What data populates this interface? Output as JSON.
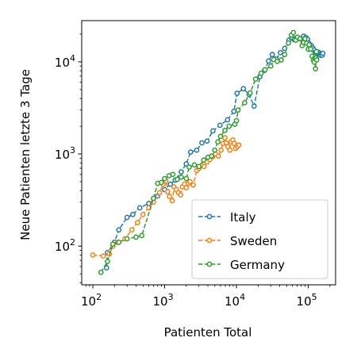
{
  "chart_data": {
    "type": "scatter",
    "title": "",
    "xlabel": "Patienten Total",
    "ylabel": "Neue Patienten letzte 3 Tage",
    "x_scale": "log",
    "y_scale": "log",
    "xlim": [
      70,
      240000
    ],
    "ylim": [
      38,
      28000
    ],
    "x_ticks": [
      {
        "value": 100,
        "base": "10",
        "exp": "2"
      },
      {
        "value": 1000,
        "base": "10",
        "exp": "3"
      },
      {
        "value": 10000,
        "base": "10",
        "exp": "4"
      },
      {
        "value": 100000,
        "base": "10",
        "exp": "5"
      }
    ],
    "y_ticks": [
      {
        "value": 100,
        "base": "10",
        "exp": "2"
      },
      {
        "value": 1000,
        "base": "10",
        "exp": "3"
      },
      {
        "value": 10000,
        "base": "10",
        "exp": "4"
      }
    ],
    "grid": false,
    "legend_position": "lower-right",
    "series": [
      {
        "name": "Italy",
        "color": "#1f77b4",
        "points": [
          [
            155,
            58
          ],
          [
            160,
            85
          ],
          [
            200,
            110
          ],
          [
            230,
            150
          ],
          [
            300,
            205
          ],
          [
            360,
            220
          ],
          [
            450,
            260
          ],
          [
            600,
            290
          ],
          [
            800,
            350
          ],
          [
            1000,
            410
          ],
          [
            1200,
            470
          ],
          [
            1400,
            520
          ],
          [
            1700,
            640
          ],
          [
            2000,
            780
          ],
          [
            2300,
            1050
          ],
          [
            2800,
            1100
          ],
          [
            3300,
            1320
          ],
          [
            3900,
            1380
          ],
          [
            4700,
            1780
          ],
          [
            5900,
            2050
          ],
          [
            7500,
            2350
          ],
          [
            9200,
            2900
          ],
          [
            10200,
            4550
          ],
          [
            12500,
            5100
          ],
          [
            15000,
            4400
          ],
          [
            17600,
            3300
          ],
          [
            21200,
            6900
          ],
          [
            24700,
            8100
          ],
          [
            28000,
            10200
          ],
          [
            31500,
            12000
          ],
          [
            35700,
            10700
          ],
          [
            41000,
            12600
          ],
          [
            47000,
            14000
          ],
          [
            53600,
            17200
          ],
          [
            59100,
            18300
          ],
          [
            64000,
            17400
          ],
          [
            69000,
            18300
          ],
          [
            74000,
            17800
          ],
          [
            80500,
            18000
          ],
          [
            86500,
            19000
          ],
          [
            92400,
            18400
          ],
          [
            97700,
            17600
          ],
          [
            101700,
            16000
          ],
          [
            105800,
            15300
          ],
          [
            110600,
            15000
          ],
          [
            115200,
            14200
          ],
          [
            119800,
            13500
          ],
          [
            124600,
            12700
          ],
          [
            128900,
            12900
          ],
          [
            132500,
            12500
          ],
          [
            135600,
            12400
          ],
          [
            139400,
            12700
          ],
          [
            143600,
            12200
          ],
          [
            147500,
            11800
          ],
          [
            152300,
            12200
          ],
          [
            156300,
            11800
          ],
          [
            159500,
            12400
          ]
        ]
      },
      {
        "name": "Sweden",
        "color": "#ff7f0e",
        "points": [
          [
            100,
            80
          ],
          [
            140,
            78
          ],
          [
            170,
            82
          ],
          [
            190,
            100
          ],
          [
            220,
            110
          ],
          [
            280,
            120
          ],
          [
            350,
            150
          ],
          [
            420,
            180
          ],
          [
            500,
            220
          ],
          [
            600,
            260
          ],
          [
            700,
            300
          ],
          [
            850,
            380
          ],
          [
            950,
            470
          ],
          [
            1040,
            510
          ],
          [
            1100,
            390
          ],
          [
            1170,
            345
          ],
          [
            1280,
            310
          ],
          [
            1350,
            440
          ],
          [
            1460,
            410
          ],
          [
            1550,
            380
          ],
          [
            1670,
            360
          ],
          [
            1760,
            440
          ],
          [
            1890,
            470
          ],
          [
            2000,
            430
          ],
          [
            2140,
            480
          ],
          [
            2260,
            500
          ],
          [
            2500,
            460
          ],
          [
            2800,
            660
          ],
          [
            3000,
            700
          ],
          [
            3300,
            750
          ],
          [
            3550,
            730
          ],
          [
            3900,
            820
          ],
          [
            4250,
            870
          ],
          [
            4650,
            930
          ],
          [
            5100,
            1000
          ],
          [
            5600,
            950
          ],
          [
            6100,
            1100
          ],
          [
            6500,
            1300
          ],
          [
            6900,
            1500
          ],
          [
            7200,
            1320
          ],
          [
            7600,
            1200
          ],
          [
            8100,
            1100
          ],
          [
            8400,
            1350
          ],
          [
            8900,
            1420
          ],
          [
            9300,
            1300
          ],
          [
            9700,
            1150
          ],
          [
            10300,
            1200
          ],
          [
            10800,
            1250
          ]
        ]
      },
      {
        "name": "Germany",
        "color": "#2ca02c",
        "points": [
          [
            130,
            52
          ],
          [
            160,
            68
          ],
          [
            190,
            105
          ],
          [
            230,
            110
          ],
          [
            300,
            120
          ],
          [
            400,
            125
          ],
          [
            480,
            130
          ],
          [
            700,
            330
          ],
          [
            800,
            480
          ],
          [
            900,
            490
          ],
          [
            1000,
            540
          ],
          [
            1150,
            580
          ],
          [
            1300,
            600
          ],
          [
            1500,
            530
          ],
          [
            1700,
            560
          ],
          [
            2000,
            540
          ],
          [
            2200,
            720
          ],
          [
            2600,
            760
          ],
          [
            3000,
            730
          ],
          [
            3500,
            860
          ],
          [
            4000,
            920
          ],
          [
            4500,
            950
          ],
          [
            5000,
            1100
          ],
          [
            5500,
            1350
          ],
          [
            6000,
            1550
          ],
          [
            6900,
            1800
          ],
          [
            7900,
            2000
          ],
          [
            9500,
            2100
          ],
          [
            10000,
            2300
          ],
          [
            10500,
            3000
          ],
          [
            13000,
            3600
          ],
          [
            15500,
            4600
          ],
          [
            18500,
            6500
          ],
          [
            22000,
            7500
          ],
          [
            25000,
            8200
          ],
          [
            30000,
            9000
          ],
          [
            33000,
            10600
          ],
          [
            37000,
            10100
          ],
          [
            42000,
            10500
          ],
          [
            47000,
            12000
          ],
          [
            53000,
            16000
          ],
          [
            58000,
            19500
          ],
          [
            62000,
            20800
          ],
          [
            67000,
            17200
          ],
          [
            71000,
            18500
          ],
          [
            77000,
            17800
          ],
          [
            82000,
            15000
          ],
          [
            86000,
            16200
          ],
          [
            90000,
            17800
          ],
          [
            95000,
            15900
          ],
          [
            100000,
            13700
          ],
          [
            103000,
            15300
          ],
          [
            108000,
            13800
          ],
          [
            113000,
            11500
          ],
          [
            118000,
            10400
          ],
          [
            121000,
            9900
          ],
          [
            123000,
            11000
          ],
          [
            126000,
            8400
          ],
          [
            128000,
            11000
          ],
          [
            130000,
            12900
          ],
          [
            131000,
            10500
          ]
        ]
      }
    ]
  }
}
